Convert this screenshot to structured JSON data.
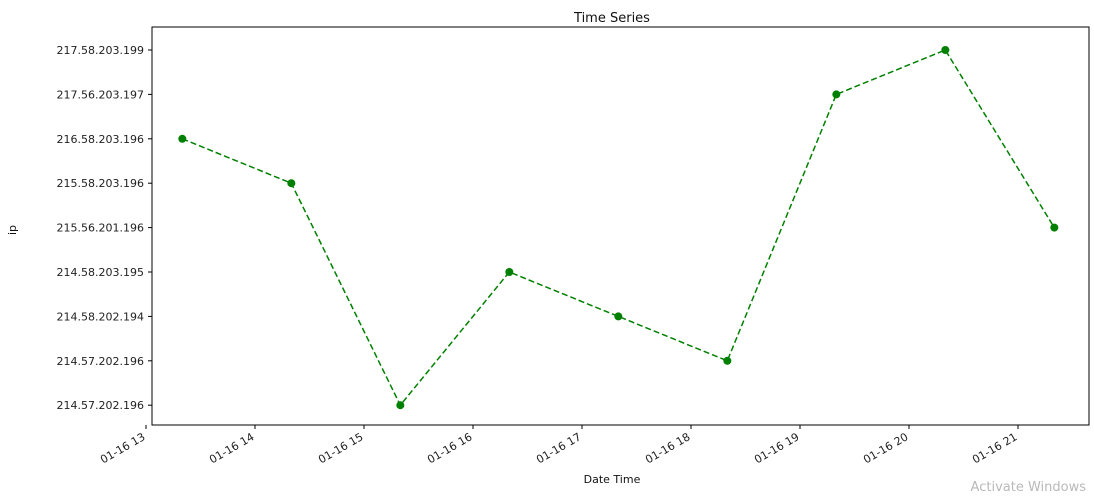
{
  "chart_data": {
    "type": "line",
    "title": "Time Series",
    "xlabel": "Date Time",
    "ylabel": "ip",
    "y_categories": [
      "214.57.202.196",
      "214.57.202.196",
      "214.58.202.194",
      "214.58.203.195",
      "215.56.201.196",
      "215.58.203.196",
      "216.58.203.196",
      "217.56.203.197",
      "217.58.203.199"
    ],
    "x_ticks": [
      "01-16 13",
      "01-16 14",
      "01-16 15",
      "01-16 16",
      "01-16 17",
      "01-16 18",
      "01-16 19",
      "01-16 20",
      "01-16 21"
    ],
    "series": [
      {
        "x": [
          "01-16 13:20",
          "01-16 14:20",
          "01-16 15:20",
          "01-16 16:20",
          "01-16 17:20",
          "01-16 18:20",
          "01-16 19:20",
          "01-16 20:20",
          "01-16 21:20"
        ],
        "y": [
          "216.58.203.196",
          "215.58.203.196",
          "214.57.202.196",
          "214.58.203.195",
          "214.58.202.194",
          "214.57.202.196",
          "217.56.203.197",
          "217.58.203.199",
          "215.56.201.196"
        ],
        "y_index": [
          6,
          5,
          0,
          3,
          2,
          1,
          7,
          8,
          4
        ]
      }
    ],
    "line_style": "dashed",
    "marker": "circle",
    "color": "#008000",
    "grid": false,
    "legend": "none"
  },
  "watermark": "Activate Windows"
}
